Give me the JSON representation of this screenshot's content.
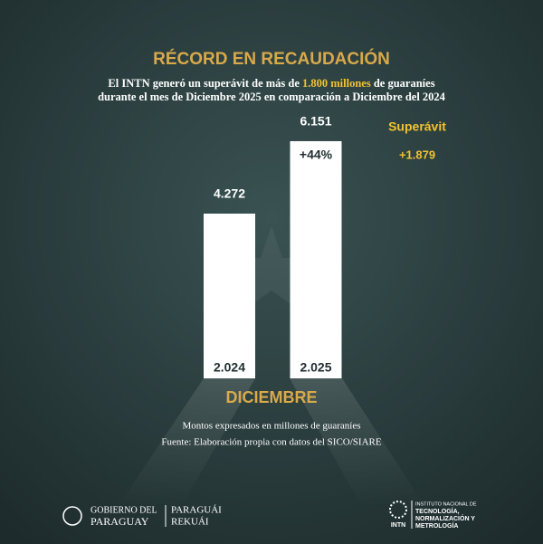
{
  "chart_data": {
    "type": "bar",
    "title": "RÉCORD EN RECAUDACIÓN",
    "subtitle": [
      "El INTN generó un superávit de más de",
      "1.800 millones",
      "de guaraníes",
      "durante el mes de Diciembre 2025 en comparación a Diciembre del 2024"
    ],
    "categories": [
      "2.024",
      "2.025"
    ],
    "values": [
      4272,
      6151
    ],
    "value_labels": [
      "4.272",
      "6.151"
    ],
    "color": "#ffffff",
    "x_label": "DICIEMBRE",
    "annotations": {
      "growth": "+44%",
      "surplus_label": "Superávit",
      "surplus_value": "+1.879"
    },
    "notes": [
      "Montos expresados en millones de guaraníes",
      "Fuente: Elaboración propia con datos del SICO/SIARE"
    ]
  },
  "footer": {
    "gov_line1": "GOBIERNO DEL",
    "gov_line2": "PARAGUAY",
    "motto_line1": "PARAGUÁI",
    "motto_line2": "REKUÁI",
    "intn_short": "INTN",
    "intn_line1": "INSTITUTO NACIONAL DE",
    "intn_line2": "TECNOLOGÍA,",
    "intn_line3": "NORMALIZACIÓN Y",
    "intn_line4": "METROLOGÍA"
  }
}
